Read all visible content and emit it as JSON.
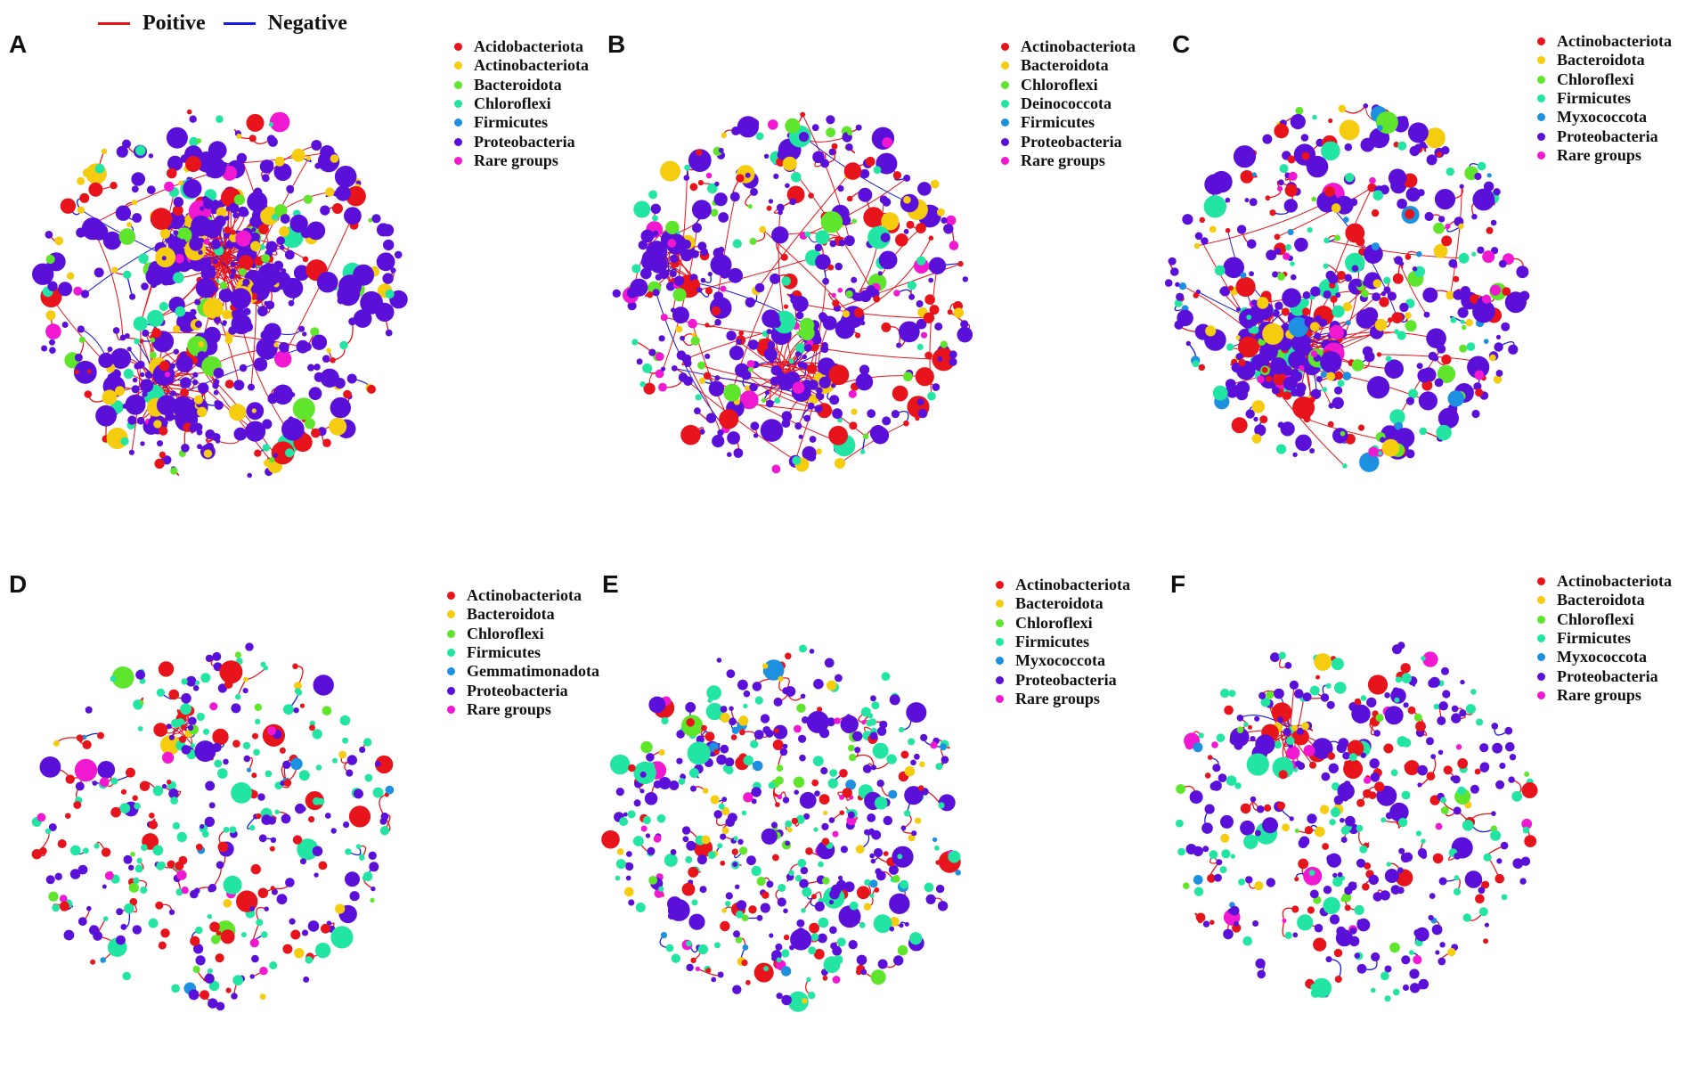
{
  "edge_legend": [
    {
      "label": "Poitive",
      "color": "#e8141c"
    },
    {
      "label": "Negative",
      "color": "#1a1ae0"
    }
  ],
  "palette": {
    "Acidobacteriota": "#e8141c",
    "Actinobacteriota": "#e8141c",
    "Bacteroidota": "#f5cc10",
    "Chloroflexi": "#5fe52c",
    "Deinococcota": "#22e5a4",
    "Firmicutes": "#22e5a4",
    "Gemmatimonadota": "#1e90e0",
    "Myxococcota": "#1e90e0",
    "Proteobacteria": "#5a10d8",
    "Rare groups": "#f018d0"
  },
  "panels": [
    {
      "letter": "A",
      "legend": [
        {
          "label": "Acidobacteriota",
          "color": "#e8141c"
        },
        {
          "label": "Actinobacteriota",
          "color": "#f5cc10"
        },
        {
          "label": "Bacteroidota",
          "color": "#5fe52c"
        },
        {
          "label": "Chloroflexi",
          "color": "#22e5a4"
        },
        {
          "label": "Firmicutes",
          "color": "#1e90e0"
        },
        {
          "label": "Proteobacteria",
          "color": "#5a10d8"
        },
        {
          "label": "Rare groups",
          "color": "#f018d0"
        }
      ]
    },
    {
      "letter": "B",
      "legend": [
        {
          "label": "Actinobacteriota",
          "color": "#e8141c"
        },
        {
          "label": "Bacteroidota",
          "color": "#f5cc10"
        },
        {
          "label": "Chloroflexi",
          "color": "#5fe52c"
        },
        {
          "label": "Deinococcota",
          "color": "#22e5a4"
        },
        {
          "label": "Firmicutes",
          "color": "#1e90e0"
        },
        {
          "label": "Proteobacteria",
          "color": "#5a10d8"
        },
        {
          "label": "Rare groups",
          "color": "#f018d0"
        }
      ]
    },
    {
      "letter": "C",
      "legend": [
        {
          "label": "Actinobacteriota",
          "color": "#e8141c"
        },
        {
          "label": "Bacteroidota",
          "color": "#f5cc10"
        },
        {
          "label": "Chloroflexi",
          "color": "#5fe52c"
        },
        {
          "label": "Firmicutes",
          "color": "#22e5a4"
        },
        {
          "label": "Myxococcota",
          "color": "#1e90e0"
        },
        {
          "label": "Proteobacteria",
          "color": "#5a10d8"
        },
        {
          "label": "Rare groups",
          "color": "#f018d0"
        }
      ]
    },
    {
      "letter": "D",
      "legend": [
        {
          "label": "Actinobacteriota",
          "color": "#e8141c"
        },
        {
          "label": "Bacteroidota",
          "color": "#f5cc10"
        },
        {
          "label": "Chloroflexi",
          "color": "#5fe52c"
        },
        {
          "label": "Firmicutes",
          "color": "#22e5a4"
        },
        {
          "label": "Gemmatimonadota",
          "color": "#1e90e0"
        },
        {
          "label": "Proteobacteria",
          "color": "#5a10d8"
        },
        {
          "label": "Rare groups",
          "color": "#f018d0"
        }
      ]
    },
    {
      "letter": "E",
      "legend": [
        {
          "label": "Actinobacteriota",
          "color": "#e8141c"
        },
        {
          "label": "Bacteroidota",
          "color": "#f5cc10"
        },
        {
          "label": "Chloroflexi",
          "color": "#5fe52c"
        },
        {
          "label": "Firmicutes",
          "color": "#22e5a4"
        },
        {
          "label": "Myxococcota",
          "color": "#1e90e0"
        },
        {
          "label": "Proteobacteria",
          "color": "#5a10d8"
        },
        {
          "label": "Rare groups",
          "color": "#f018d0"
        }
      ]
    },
    {
      "letter": "F",
      "legend": [
        {
          "label": "Actinobacteriota",
          "color": "#e8141c"
        },
        {
          "label": "Bacteroidota",
          "color": "#f5cc10"
        },
        {
          "label": "Chloroflexi",
          "color": "#5fe52c"
        },
        {
          "label": "Firmicutes",
          "color": "#22e5a4"
        },
        {
          "label": "Myxococcota",
          "color": "#1e90e0"
        },
        {
          "label": "Proteobacteria",
          "color": "#5a10d8"
        },
        {
          "label": "Rare groups",
          "color": "#f018d0"
        }
      ]
    }
  ]
}
